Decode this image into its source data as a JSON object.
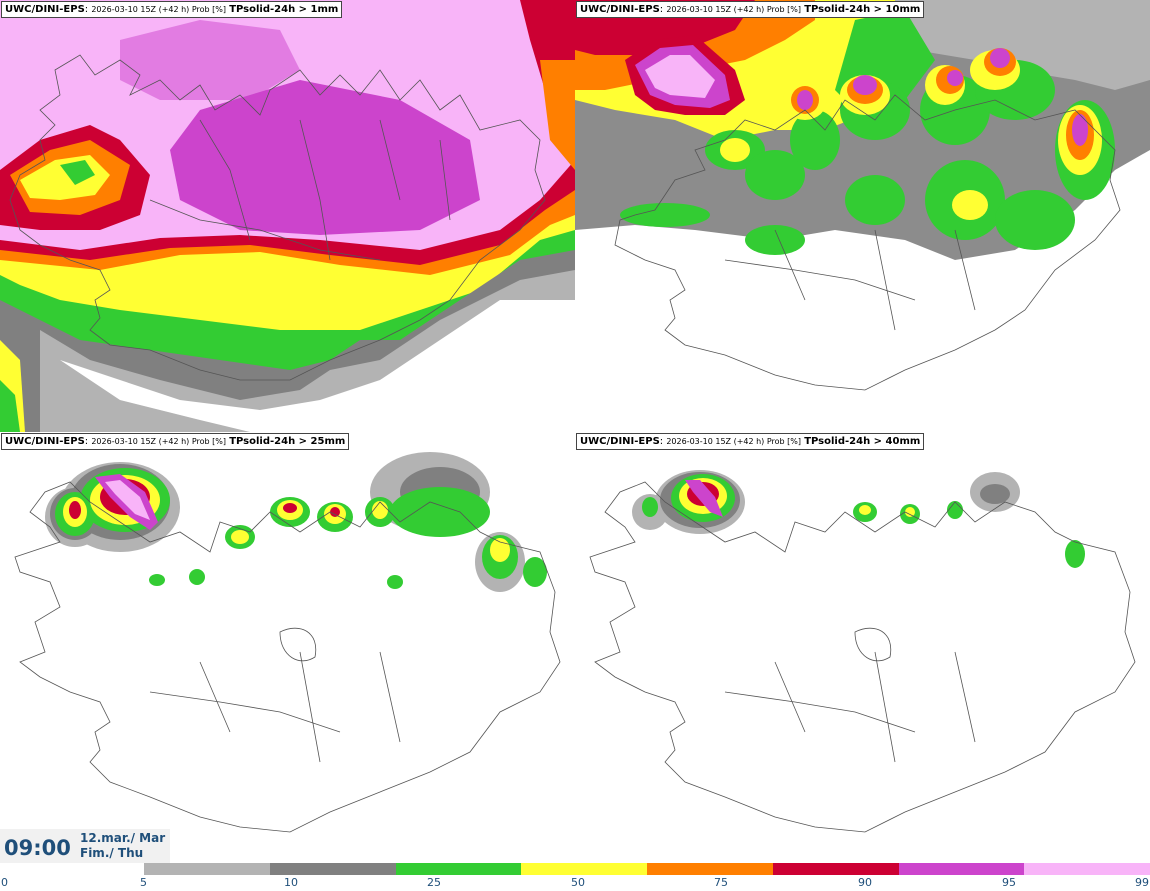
{
  "panels": [
    {
      "model": "UWC/DINI-EPS",
      "run_info": "2026-03-10 15Z (+42 h) Prob [%]",
      "variable": "TPsolid-24h > 1mm"
    },
    {
      "model": "UWC/DINI-EPS",
      "run_info": "2026-03-10 15Z (+42 h) Prob [%]",
      "variable": "TPsolid-24h > 10mm"
    },
    {
      "model": "UWC/DINI-EPS",
      "run_info": "2026-03-10 15Z (+42 h) Prob [%]",
      "variable": "TPsolid-24h > 25mm"
    },
    {
      "model": "UWC/DINI-EPS",
      "run_info": "2026-03-10 15Z (+42 h) Prob [%]",
      "variable": "TPsolid-24h > 40mm"
    }
  ],
  "valid_time": {
    "time": "09:00",
    "date": "12.mar./ Mar",
    "weekday": "Fim./ Thu"
  },
  "legend": {
    "ticks": [
      "0",
      "5",
      "10",
      "25",
      "50",
      "75",
      "90",
      "95",
      "99"
    ],
    "colors": [
      "#b3b3b3",
      "#808080",
      "#33cc33",
      "#ffff33",
      "#ff7f00",
      "#cc0033",
      "#cc44cc",
      "#f8b4f8"
    ]
  }
}
